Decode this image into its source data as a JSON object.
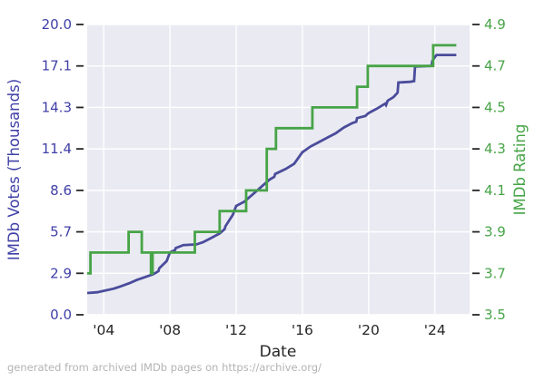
{
  "footer": "generated from archived IMDb pages on https://archive.org/",
  "chart_data": {
    "type": "line",
    "title": "",
    "xlabel": "Date",
    "ylabel_left": "IMDb Votes (Thousands)",
    "ylabel_right": "IMDb Rating",
    "plot_background": "#eaeaf2",
    "grid_color": "#ffffff",
    "tick_mark_color": "#262626",
    "grid": true,
    "legend": "none",
    "x_range": [
      2003.0,
      2026.1
    ],
    "x_ticks": {
      "values": [
        2004,
        2008,
        2012,
        2016,
        2020,
        2024
      ],
      "labels": [
        "'04",
        "'08",
        "'12",
        "'16",
        "'20",
        "'24"
      ]
    },
    "y_left": {
      "range": [
        0,
        20
      ],
      "tick_values": [
        0,
        2.857,
        5.714,
        8.571,
        11.429,
        14.286,
        17.143,
        20
      ],
      "tick_labels": [
        "0.0",
        "2.9",
        "5.7",
        "8.6",
        "11.4",
        "14.3",
        "17.1",
        "20.0"
      ],
      "color": "#4040a8"
    },
    "y_right": {
      "range": [
        3.5,
        4.9
      ],
      "tick_values": [
        3.5,
        3.7,
        3.9,
        4.1,
        4.3,
        4.5,
        4.7,
        4.9
      ],
      "tick_labels": [
        "3.5",
        "3.7",
        "3.9",
        "4.1",
        "4.3",
        "4.5",
        "4.7",
        "4.9"
      ],
      "color": "#47a447"
    },
    "series": [
      {
        "name": "IMDb Votes (Thousands)",
        "axis": "left",
        "color": "#4a4c9b",
        "points": [
          [
            2003.0,
            1.5
          ],
          [
            2003.6,
            1.55
          ],
          [
            2004.0,
            1.65
          ],
          [
            2004.6,
            1.8
          ],
          [
            2005.0,
            1.95
          ],
          [
            2005.6,
            2.2
          ],
          [
            2006.0,
            2.4
          ],
          [
            2006.5,
            2.6
          ],
          [
            2007.0,
            2.8
          ],
          [
            2007.3,
            3.0
          ],
          [
            2007.35,
            3.2
          ],
          [
            2007.8,
            3.7
          ],
          [
            2008.0,
            4.3
          ],
          [
            2008.3,
            4.45
          ],
          [
            2008.35,
            4.6
          ],
          [
            2008.8,
            4.8
          ],
          [
            2009.6,
            4.85
          ],
          [
            2010.0,
            5.0
          ],
          [
            2010.5,
            5.3
          ],
          [
            2011.0,
            5.6
          ],
          [
            2011.3,
            5.9
          ],
          [
            2011.35,
            6.1
          ],
          [
            2011.8,
            6.9
          ],
          [
            2012.0,
            7.5
          ],
          [
            2012.5,
            7.8
          ],
          [
            2013.0,
            8.3
          ],
          [
            2013.5,
            8.8
          ],
          [
            2014.0,
            9.3
          ],
          [
            2014.3,
            9.5
          ],
          [
            2014.35,
            9.7
          ],
          [
            2015.0,
            10.05
          ],
          [
            2015.5,
            10.4
          ],
          [
            2016.0,
            11.2
          ],
          [
            2016.5,
            11.6
          ],
          [
            2017.0,
            11.9
          ],
          [
            2017.5,
            12.2
          ],
          [
            2018.0,
            12.5
          ],
          [
            2018.5,
            12.9
          ],
          [
            2019.0,
            13.2
          ],
          [
            2019.25,
            13.3
          ],
          [
            2019.3,
            13.55
          ],
          [
            2019.8,
            13.7
          ],
          [
            2020.0,
            13.9
          ],
          [
            2020.5,
            14.2
          ],
          [
            2021.0,
            14.55
          ],
          [
            2021.05,
            14.45
          ],
          [
            2021.15,
            14.75
          ],
          [
            2021.5,
            15.0
          ],
          [
            2021.75,
            15.3
          ],
          [
            2021.8,
            16.0
          ],
          [
            2022.5,
            16.05
          ],
          [
            2022.75,
            16.1
          ],
          [
            2022.8,
            17.1
          ],
          [
            2023.8,
            17.15
          ],
          [
            2023.85,
            17.5
          ],
          [
            2024.1,
            17.9
          ],
          [
            2025.3,
            17.9
          ]
        ]
      },
      {
        "name": "IMDb Rating",
        "axis": "right",
        "color": "#47a447",
        "points": [
          [
            2003.0,
            3.7
          ],
          [
            2003.2,
            3.7
          ],
          [
            2003.2,
            3.8
          ],
          [
            2005.5,
            3.8
          ],
          [
            2005.5,
            3.9
          ],
          [
            2006.3,
            3.9
          ],
          [
            2006.3,
            3.8
          ],
          [
            2006.85,
            3.8
          ],
          [
            2006.85,
            3.7
          ],
          [
            2006.95,
            3.7
          ],
          [
            2006.95,
            3.8
          ],
          [
            2009.5,
            3.8
          ],
          [
            2009.5,
            3.9
          ],
          [
            2011.0,
            3.9
          ],
          [
            2011.0,
            4.0
          ],
          [
            2012.6,
            4.0
          ],
          [
            2012.6,
            4.1
          ],
          [
            2013.85,
            4.1
          ],
          [
            2013.85,
            4.3
          ],
          [
            2014.4,
            4.3
          ],
          [
            2014.4,
            4.4
          ],
          [
            2016.6,
            4.4
          ],
          [
            2016.6,
            4.5
          ],
          [
            2019.3,
            4.5
          ],
          [
            2019.3,
            4.6
          ],
          [
            2019.95,
            4.6
          ],
          [
            2019.95,
            4.7
          ],
          [
            2023.9,
            4.7
          ],
          [
            2023.9,
            4.8
          ],
          [
            2025.3,
            4.8
          ]
        ]
      }
    ]
  }
}
